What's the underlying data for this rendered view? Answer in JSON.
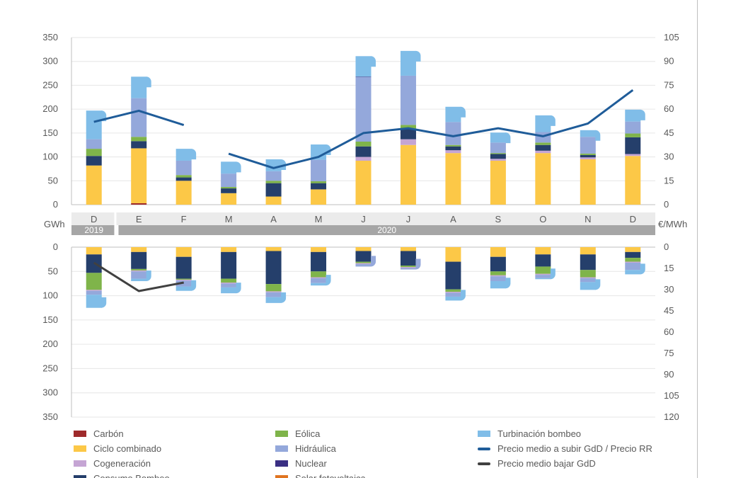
{
  "chart_data": {
    "type": "bar",
    "stacked": true,
    "months": [
      "D",
      "E",
      "F",
      "M",
      "A",
      "M",
      "J",
      "J",
      "A",
      "S",
      "O",
      "N",
      "D"
    ],
    "years": [
      {
        "label": "2019",
        "from": 0,
        "to": 0
      },
      {
        "label": "2020",
        "from": 1,
        "to": 12
      }
    ],
    "left_axis_label": "GWh",
    "right_axis_label": "€/MWh",
    "upper": {
      "ylim": [
        0,
        350
      ],
      "yticks": [
        0,
        50,
        100,
        150,
        200,
        250,
        300,
        350
      ],
      "y2lim": [
        0,
        105
      ],
      "y2ticks": [
        0,
        15,
        30,
        45,
        60,
        75,
        90,
        105
      ],
      "series": [
        {
          "key": "carbon",
          "name": "Carbón",
          "color": "#9e2a2b",
          "values": [
            0,
            3,
            0,
            0,
            0,
            0,
            0,
            0,
            0,
            0,
            0,
            0,
            0
          ]
        },
        {
          "key": "ciclo",
          "name": "Ciclo combinado",
          "color": "#fcc847",
          "values": [
            82,
            115,
            50,
            24,
            17,
            32,
            92,
            125,
            108,
            92,
            108,
            95,
            102
          ]
        },
        {
          "key": "cogen",
          "name": "Cogeneración",
          "color": "#c5a5d4",
          "values": [
            0,
            0,
            0,
            0,
            0,
            0,
            8,
            12,
            6,
            4,
            5,
            4,
            4
          ]
        },
        {
          "key": "bombeo",
          "name": "Consumo Bombeo",
          "color": "#253f6b",
          "values": [
            20,
            15,
            7,
            10,
            28,
            13,
            22,
            22,
            8,
            10,
            12,
            5,
            35
          ]
        },
        {
          "key": "eolica",
          "name": "Eólica",
          "color": "#7fb44a",
          "values": [
            15,
            9,
            5,
            3,
            5,
            4,
            10,
            8,
            3,
            2,
            5,
            3,
            8
          ]
        },
        {
          "key": "hidraulica",
          "name": "Hidráulica",
          "color": "#94a8db",
          "values": [
            20,
            81,
            30,
            28,
            20,
            45,
            135,
            103,
            48,
            22,
            22,
            35,
            25
          ]
        },
        {
          "key": "nuclear",
          "name": "Nuclear",
          "color": "#3a2f83",
          "values": [
            0,
            0,
            0,
            0,
            0,
            0,
            1,
            0,
            0,
            0,
            0,
            0,
            0
          ]
        },
        {
          "key": "solar",
          "name": "Solar fotovoltaica",
          "color": "#e07420",
          "values": [
            0,
            0,
            0,
            0,
            0,
            0,
            0,
            0,
            0,
            0,
            0,
            0,
            0
          ]
        },
        {
          "key": "turbinacion",
          "name": "Turbinación bombeo",
          "color": "#80bde8",
          "values": [
            60,
            45,
            25,
            25,
            25,
            32,
            43,
            52,
            32,
            21,
            35,
            14,
            25
          ]
        }
      ],
      "price_line": {
        "name": "Precio medio a subir GdD / Precio RR",
        "color": "#1f5c99",
        "segments": [
          [
            52,
            59,
            50
          ],
          [
            null,
            null,
            null,
            32,
            23,
            30,
            45,
            48,
            43,
            48,
            43,
            51,
            72
          ]
        ]
      }
    },
    "lower": {
      "ylim": [
        0,
        350
      ],
      "yticks": [
        0,
        50,
        100,
        150,
        200,
        250,
        300,
        350
      ],
      "y2lim": [
        0,
        120
      ],
      "y2ticks": [
        0,
        15,
        30,
        45,
        60,
        75,
        90,
        105,
        120
      ],
      "series": [
        {
          "key": "ciclo",
          "name": "Ciclo combinado",
          "color": "#fcc847",
          "values": [
            15,
            10,
            20,
            10,
            8,
            10,
            8,
            8,
            30,
            20,
            15,
            15,
            10
          ]
        },
        {
          "key": "bombeo",
          "name": "Consumo Bombeo",
          "color": "#253f6b",
          "values": [
            38,
            35,
            45,
            55,
            68,
            40,
            22,
            30,
            57,
            30,
            25,
            32,
            12
          ]
        },
        {
          "key": "eolica",
          "name": "Eólica",
          "color": "#7fb44a",
          "values": [
            35,
            3,
            2,
            8,
            15,
            12,
            3,
            3,
            5,
            8,
            15,
            15,
            8
          ]
        },
        {
          "key": "cogen",
          "name": "Cogeneración",
          "color": "#c5a5d4",
          "values": [
            2,
            2,
            2,
            2,
            2,
            2,
            2,
            2,
            2,
            2,
            2,
            2,
            2
          ]
        },
        {
          "key": "hidraulica",
          "name": "Hidráulica",
          "color": "#94a8db",
          "values": [
            8,
            15,
            12,
            8,
            10,
            10,
            5,
            3,
            8,
            10,
            7,
            8,
            15
          ]
        },
        {
          "key": "turbinacion",
          "name": "Turbinación bombeo",
          "color": "#80bde8",
          "values": [
            27,
            5,
            9,
            12,
            12,
            5,
            0,
            0,
            8,
            15,
            2,
            16,
            9
          ]
        }
      ],
      "price_line": {
        "name": "Precio medio bajar GdD",
        "color": "#404040",
        "segments": [
          [
            11,
            31,
            25
          ]
        ]
      }
    },
    "legend": [
      {
        "name": "Carbón",
        "color": "#9e2a2b",
        "kind": "bar"
      },
      {
        "name": "Ciclo combinado",
        "color": "#fcc847",
        "kind": "bar"
      },
      {
        "name": "Cogeneración",
        "color": "#c5a5d4",
        "kind": "bar"
      },
      {
        "name": "Consumo Bombeo",
        "color": "#253f6b",
        "kind": "bar"
      },
      {
        "name": "Eólica",
        "color": "#7fb44a",
        "kind": "bar"
      },
      {
        "name": "Hidráulica",
        "color": "#94a8db",
        "kind": "bar"
      },
      {
        "name": "Nuclear",
        "color": "#3a2f83",
        "kind": "bar"
      },
      {
        "name": "Solar fotovoltaica",
        "color": "#e07420",
        "kind": "bar"
      },
      {
        "name": "Turbinación bombeo",
        "color": "#80bde8",
        "kind": "bar"
      },
      {
        "name": "Precio medio a subir GdD / Precio RR",
        "color": "#1f5c99",
        "kind": "line"
      },
      {
        "name": "Precio medio bajar GdD",
        "color": "#404040",
        "kind": "line"
      }
    ]
  }
}
